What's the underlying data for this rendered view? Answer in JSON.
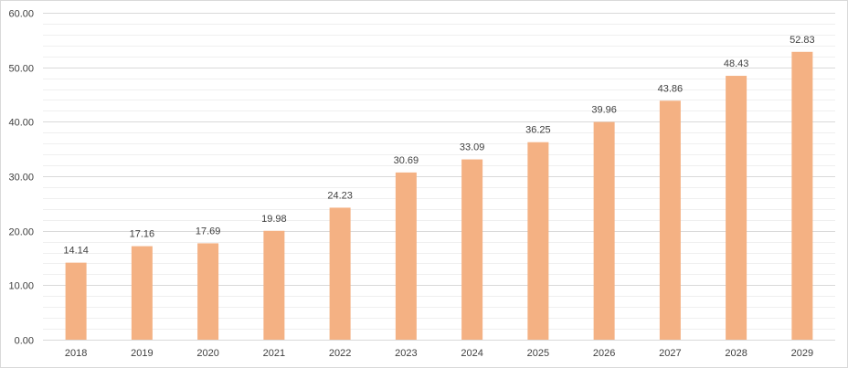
{
  "chart_data": {
    "type": "bar",
    "title": "",
    "xlabel": "",
    "ylabel": "",
    "categories": [
      "2018",
      "2019",
      "2020",
      "2021",
      "2022",
      "2023",
      "2024",
      "2025",
      "2026",
      "2027",
      "2028",
      "2029"
    ],
    "values": [
      14.14,
      17.16,
      17.69,
      19.98,
      24.23,
      30.69,
      33.09,
      36.25,
      39.96,
      43.86,
      48.43,
      52.83
    ],
    "value_labels": [
      "14.14",
      "17.16",
      "17.69",
      "19.98",
      "24.23",
      "30.69",
      "33.09",
      "36.25",
      "39.96",
      "43.86",
      "48.43",
      "52.83"
    ],
    "ylim": [
      0,
      60
    ],
    "y_ticks": [
      "0.00",
      "10.00",
      "20.00",
      "30.00",
      "40.00",
      "50.00",
      "60.00"
    ],
    "grid": true,
    "legend": "none",
    "colors": {
      "bar": "#f4b183",
      "major_grid": "#d9d9d9",
      "minor_grid": "#efefef",
      "text": "#404040",
      "frame": "#d9d9d9"
    }
  }
}
